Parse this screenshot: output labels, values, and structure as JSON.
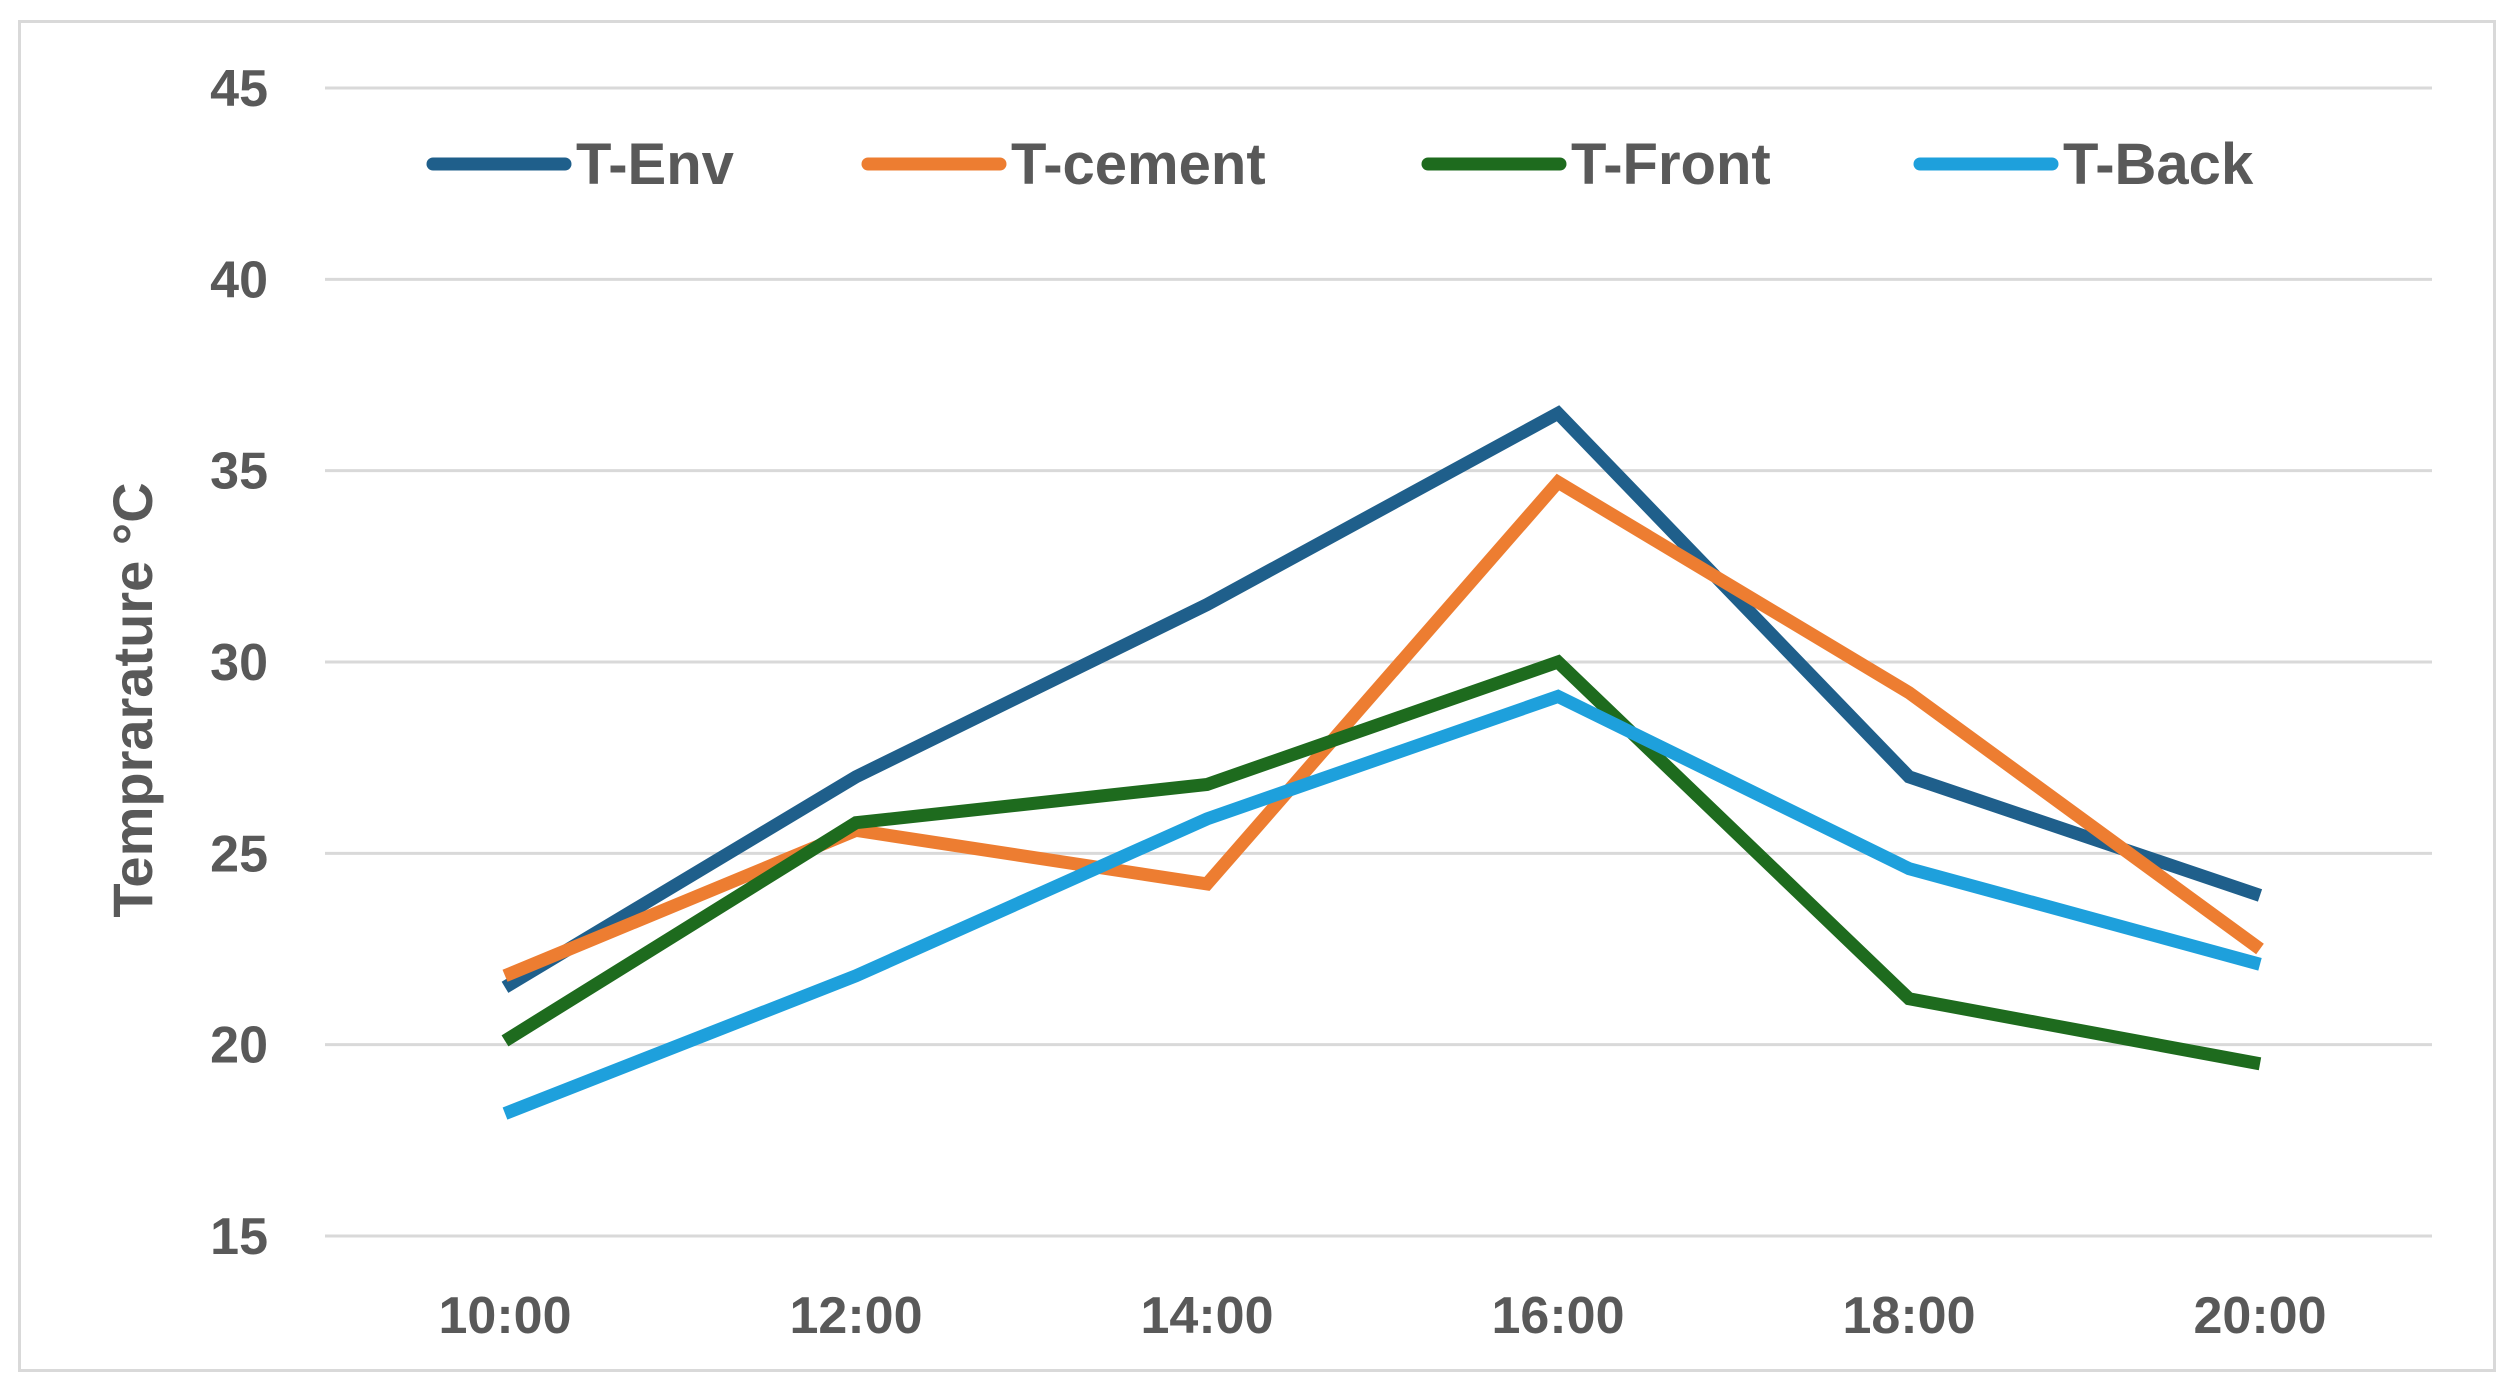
{
  "chart_data": {
    "type": "line",
    "title": "",
    "xlabel": "",
    "ylabel": "Temprarature °C",
    "categories": [
      "10:00",
      "12:00",
      "14:00",
      "16:00",
      "18:00",
      "20:00"
    ],
    "ylim": [
      15,
      45
    ],
    "yticks": [
      15,
      20,
      25,
      30,
      35,
      40,
      45
    ],
    "grid": true,
    "legend_position": "top",
    "series": [
      {
        "name": "T-Env",
        "color": "#1f5f8b",
        "values": [
          21.5,
          27.0,
          31.5,
          36.5,
          27.0,
          23.9
        ]
      },
      {
        "name": "T-cement",
        "color": "#ed7d31",
        "values": [
          21.8,
          25.6,
          24.2,
          34.7,
          29.2,
          22.5
        ]
      },
      {
        "name": "T-Front",
        "color": "#1e6b1e",
        "values": [
          20.1,
          25.8,
          26.8,
          30.0,
          21.2,
          19.5
        ]
      },
      {
        "name": "T-Back",
        "color": "#1ea0dc",
        "values": [
          18.2,
          21.8,
          25.9,
          29.1,
          24.6,
          22.1
        ]
      }
    ]
  }
}
